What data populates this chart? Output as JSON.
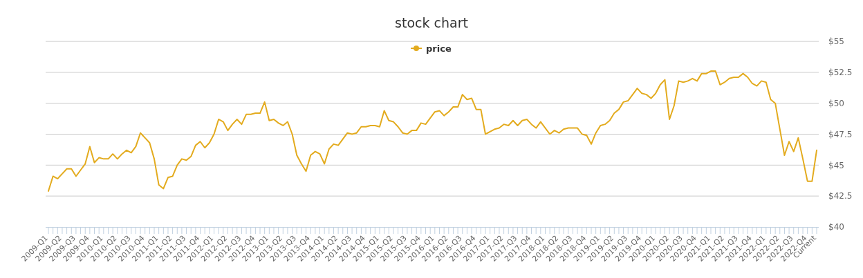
{
  "chart_data": {
    "type": "line",
    "title": "stock chart",
    "categories": [
      "2009-Q1",
      null,
      null,
      "2009-Q2",
      null,
      null,
      "2009-Q3",
      null,
      null,
      "2009-Q4",
      null,
      null,
      "2010-Q1",
      null,
      null,
      "2010-Q2",
      null,
      null,
      "2010-Q3",
      null,
      null,
      "2010-Q4",
      null,
      null,
      "2011-Q1",
      null,
      null,
      "2011-Q2",
      null,
      null,
      "2011-Q3",
      null,
      null,
      "2011-Q4",
      null,
      null,
      "2012-Q1",
      null,
      null,
      "2012-Q2",
      null,
      null,
      "2012-Q3",
      null,
      null,
      "2012-Q4",
      null,
      null,
      "2013-Q1",
      null,
      null,
      "2013-Q2",
      null,
      null,
      "2013-Q3",
      null,
      null,
      "2013-Q4",
      null,
      null,
      "2014-Q1",
      null,
      null,
      "2014-Q2",
      null,
      null,
      "2014-Q3",
      null,
      null,
      "2014-Q4",
      null,
      null,
      "2015-Q1",
      null,
      null,
      "2015-Q2",
      null,
      null,
      "2015-Q3",
      null,
      null,
      "2015-Q4",
      null,
      null,
      "2016-Q1",
      null,
      null,
      "2016-Q2",
      null,
      null,
      "2016-Q3",
      null,
      null,
      "2016-Q4",
      null,
      null,
      "2017-Q1",
      null,
      null,
      "2017-Q2",
      null,
      null,
      "2017-Q3",
      null,
      null,
      "2017-Q4",
      null,
      null,
      "2018-Q1",
      null,
      null,
      "2018-Q2",
      null,
      null,
      "2018-Q3",
      null,
      null,
      "2018-Q4",
      null,
      null,
      "2019-Q1",
      null,
      null,
      "2019-Q2",
      null,
      null,
      "2019-Q3",
      null,
      null,
      "2019-Q4",
      null,
      null,
      "2020-Q1",
      null,
      null,
      "2020-Q2",
      null,
      null,
      "2020-Q3",
      null,
      null,
      "2020-Q4",
      null,
      null,
      "2021-Q1",
      null,
      null,
      "2021-Q2",
      null,
      null,
      "2021-Q3",
      null,
      null,
      "2021-Q4",
      null,
      null,
      "2022-Q1",
      null,
      null,
      "2022-Q2",
      null,
      null,
      "2022-Q3",
      null,
      null,
      "2022-Q4",
      null,
      "Current"
    ],
    "series": [
      {
        "name": "price",
        "color": "#e3ab1e",
        "values": [
          42.9,
          44.1,
          43.9,
          44.3,
          44.7,
          44.7,
          44.1,
          44.6,
          45.1,
          46.5,
          45.2,
          45.6,
          45.5,
          45.5,
          45.9,
          45.5,
          45.9,
          46.2,
          46,
          46.5,
          47.6,
          47.2,
          46.8,
          45.5,
          43.4,
          43.1,
          44,
          44.1,
          45,
          45.5,
          45.4,
          45.7,
          46.6,
          46.9,
          46.4,
          46.8,
          47.5,
          48.7,
          48.5,
          47.8,
          48.3,
          48.7,
          48.3,
          49.1,
          49.1,
          49.2,
          49.2,
          50.1,
          48.6,
          48.7,
          48.4,
          48.2,
          48.5,
          47.5,
          45.8,
          45.1,
          44.5,
          45.8,
          46.1,
          45.9,
          45.1,
          46.3,
          46.7,
          46.6,
          47.1,
          47.6,
          47.5,
          47.6,
          48.1,
          48.1,
          48.2,
          48.2,
          48.1,
          49.4,
          48.6,
          48.5,
          48.1,
          47.6,
          47.5,
          47.8,
          47.8,
          48.4,
          48.3,
          48.8,
          49.3,
          49.4,
          49,
          49.3,
          49.7,
          49.7,
          50.7,
          50.3,
          50.4,
          49.5,
          49.5,
          47.5,
          47.7,
          47.9,
          48,
          48.3,
          48.2,
          48.6,
          48.2,
          48.6,
          48.7,
          48.3,
          48,
          48.5,
          48,
          47.5,
          47.8,
          47.6,
          47.9,
          48,
          48,
          48,
          47.5,
          47.4,
          46.7,
          47.6,
          48.2,
          48.3,
          48.6,
          49.2,
          49.5,
          50.1,
          50.2,
          50.7,
          51.2,
          50.8,
          50.7,
          50.4,
          50.8,
          51.5,
          51.9,
          48.7,
          49.8,
          51.8,
          51.7,
          51.8,
          52,
          51.8,
          52.4,
          52.4,
          52.6,
          52.6,
          51.5,
          51.7,
          52,
          52.1,
          52.1,
          52.4,
          52.1,
          51.6,
          51.4,
          51.8,
          51.7,
          50.3,
          50,
          47.9,
          45.8,
          46.9,
          46.1,
          47.2,
          45.5,
          43.7,
          43.7,
          46.2
        ]
      }
    ],
    "ylim": [
      40,
      55
    ],
    "yticks": [
      {
        "value": 40,
        "label": "$40"
      },
      {
        "value": 42.5,
        "label": "$42.5"
      },
      {
        "value": 45,
        "label": "$45"
      },
      {
        "value": 47.5,
        "label": "$47.5"
      },
      {
        "value": 50,
        "label": "$50"
      },
      {
        "value": 52.5,
        "label": "$52.5"
      },
      {
        "value": 55,
        "label": "$55"
      }
    ],
    "grid": "y",
    "legend": "top"
  }
}
